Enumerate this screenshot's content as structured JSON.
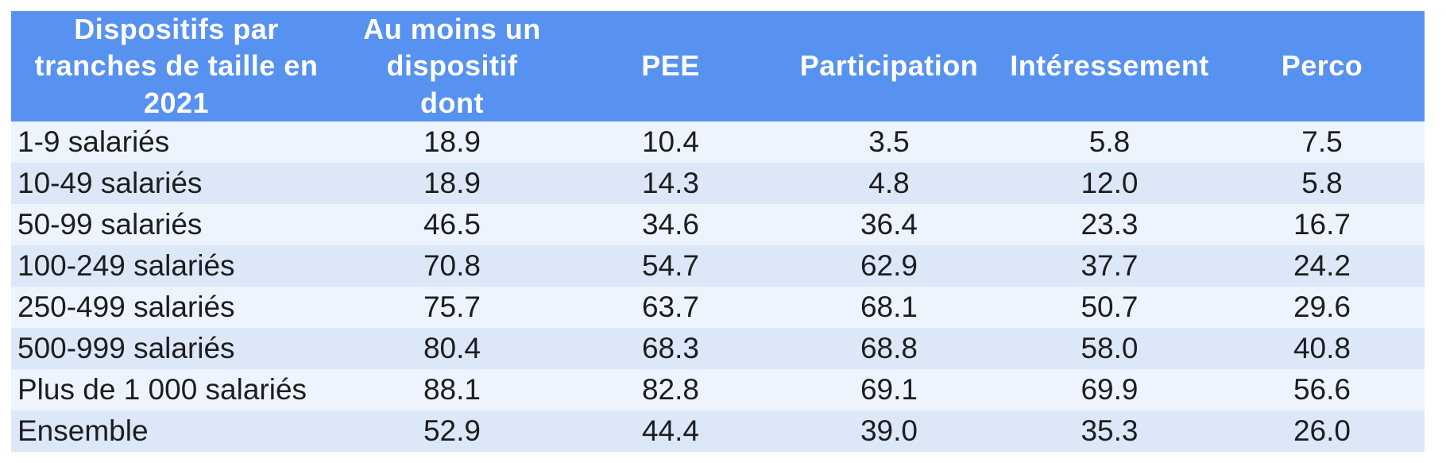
{
  "colors": {
    "page_bg": "#ffffff",
    "header_bg": "#5892f0",
    "header_text": "#ffffff",
    "row_odd_bg": "#eef4fd",
    "row_even_bg": "#dce7f8",
    "body_text": "#1d1d1f"
  },
  "table": {
    "headers": [
      "Dispositifs par tranches de taille en 2021",
      "Au moins un dispositif dont",
      "PEE",
      "Participation",
      "Intéressement",
      "Perco"
    ],
    "rows": [
      {
        "label": "1-9 salariés",
        "values": [
          "18.9",
          "10.4",
          "3.5",
          "5.8",
          "7.5"
        ]
      },
      {
        "label": "10-49 salariés",
        "values": [
          "18.9",
          "14.3",
          "4.8",
          "12.0",
          "5.8"
        ]
      },
      {
        "label": "50-99 salariés",
        "values": [
          "46.5",
          "34.6",
          "36.4",
          "23.3",
          "16.7"
        ]
      },
      {
        "label": "100-249 salariés",
        "values": [
          "70.8",
          "54.7",
          "62.9",
          "37.7",
          "24.2"
        ]
      },
      {
        "label": "250-499 salariés",
        "values": [
          "75.7",
          "63.7",
          "68.1",
          "50.7",
          "29.6"
        ]
      },
      {
        "label": "500-999 salariés",
        "values": [
          "80.4",
          "68.3",
          "68.8",
          "58.0",
          "40.8"
        ]
      },
      {
        "label": "Plus de 1 000 salariés",
        "values": [
          "88.1",
          "82.8",
          "69.1",
          "69.9",
          "56.6"
        ]
      },
      {
        "label": "Ensemble",
        "values": [
          "52.9",
          "44.4",
          "39.0",
          "35.3",
          "26.0"
        ]
      }
    ]
  },
  "chart_data": {
    "type": "table",
    "title": "Dispositifs par tranches de taille en 2021",
    "columns": [
      "Au moins un dispositif dont",
      "PEE",
      "Participation",
      "Intéressement",
      "Perco"
    ],
    "categories": [
      "1-9 salariés",
      "10-49 salariés",
      "50-99 salariés",
      "100-249 salariés",
      "250-499 salariés",
      "500-999 salariés",
      "Plus de 1 000 salariés",
      "Ensemble"
    ],
    "series": [
      {
        "name": "Au moins un dispositif dont",
        "values": [
          18.9,
          18.9,
          46.5,
          70.8,
          75.7,
          80.4,
          88.1,
          52.9
        ]
      },
      {
        "name": "PEE",
        "values": [
          10.4,
          14.3,
          34.6,
          54.7,
          63.7,
          68.3,
          82.8,
          44.4
        ]
      },
      {
        "name": "Participation",
        "values": [
          3.5,
          4.8,
          36.4,
          62.9,
          68.1,
          68.8,
          69.1,
          39.0
        ]
      },
      {
        "name": "Intéressement",
        "values": [
          5.8,
          12.0,
          23.3,
          37.7,
          50.7,
          58.0,
          69.9,
          35.3
        ]
      },
      {
        "name": "Perco",
        "values": [
          7.5,
          5.8,
          16.7,
          24.2,
          29.6,
          40.8,
          56.6,
          26.0
        ]
      }
    ]
  }
}
